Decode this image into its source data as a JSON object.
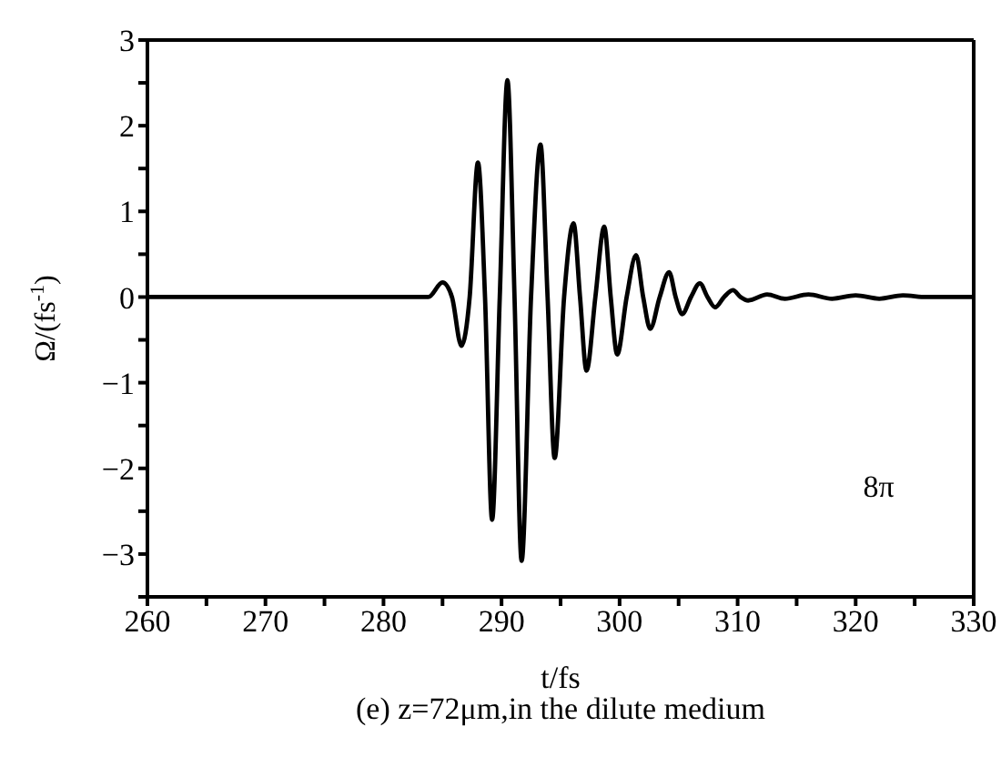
{
  "chart_data": {
    "type": "line",
    "xlabel": "t/fs",
    "ylabel": "Ω/(fs$^{-1}$)",
    "annotations": [
      "8π",
      "(e) z=72μm,in the dilute medium"
    ],
    "xlim": [
      260,
      330
    ],
    "xticks": [
      260,
      {
        "value": 265,
        "label": null
      },
      270,
      {
        "value": 275,
        "label": null
      },
      280,
      {
        "value": 285,
        "label": null
      },
      290,
      {
        "value": 295,
        "label": null
      },
      300,
      {
        "value": 305,
        "label": null
      },
      310,
      {
        "value": 315,
        "label": null
      },
      320,
      {
        "value": 325,
        "label": null
      },
      330
    ],
    "ylim": [
      -3.5,
      3
    ],
    "yticks": [
      {
        "value": -3.5,
        "label": null
      },
      -3,
      {
        "value": -2.5,
        "label": null
      },
      -2,
      {
        "value": -1.5,
        "label": null
      },
      -1,
      {
        "value": -0.5,
        "label": null
      },
      0,
      {
        "value": 0.5,
        "label": null
      },
      1,
      {
        "value": 1.5,
        "label": null
      },
      2,
      {
        "value": 2.5,
        "label": null
      },
      3
    ],
    "marker": "none",
    "line_style": "solid",
    "series": [
      {
        "color": "#000000",
        "x": [
          260,
          278,
          283.8,
          285.0,
          285.8,
          286.6,
          287.3,
          288.0,
          288.6,
          289.2,
          289.85,
          290.5,
          291.1,
          291.7,
          292.5,
          293.3,
          293.9,
          294.5,
          295.3,
          296.1,
          296.65,
          297.2,
          297.95,
          298.7,
          299.25,
          299.8,
          300.6,
          301.4,
          302.0,
          302.6,
          303.4,
          304.2,
          304.75,
          305.3,
          306.05,
          306.8,
          307.45,
          308.1,
          308.85,
          309.6,
          310.25,
          310.9,
          312.5,
          314,
          316,
          318,
          320,
          322,
          324,
          326,
          330
        ],
        "values": [
          0,
          0,
          0,
          0.17,
          0,
          -0.57,
          0,
          1.57,
          0,
          -2.6,
          0,
          2.53,
          0,
          -3.08,
          0,
          1.78,
          0,
          -1.88,
          0,
          0.86,
          0,
          -0.86,
          0,
          0.82,
          0,
          -0.67,
          0,
          0.49,
          0,
          -0.37,
          0,
          0.29,
          0,
          -0.2,
          0,
          0.16,
          0,
          -0.12,
          0,
          0.08,
          0,
          -0.04,
          0.03,
          -0.02,
          0.03,
          -0.02,
          0.02,
          -0.02,
          0.02,
          0,
          0
        ]
      }
    ]
  }
}
